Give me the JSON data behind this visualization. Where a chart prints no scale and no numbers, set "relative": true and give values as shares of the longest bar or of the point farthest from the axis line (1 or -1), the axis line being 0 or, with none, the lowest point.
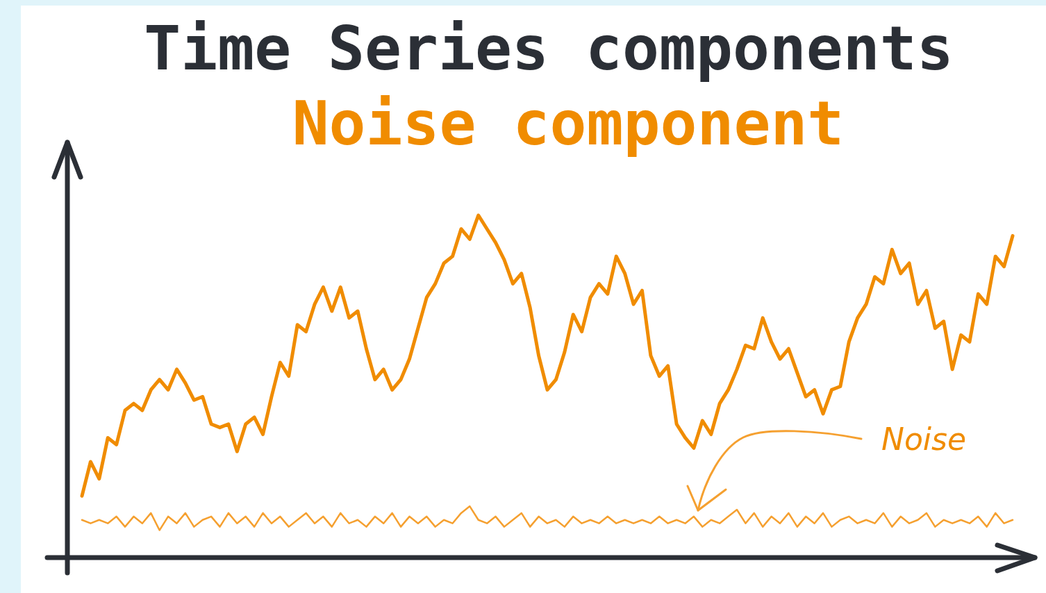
{
  "chart_data": {
    "type": "line",
    "title": "Time Series components",
    "subtitle": "Noise component",
    "relative": true,
    "marker": "none",
    "line_style": "solid",
    "categories": [
      null,
      null,
      null,
      null,
      null,
      null,
      null,
      null,
      null,
      null,
      null,
      null,
      null,
      null,
      null,
      null,
      null,
      null,
      null,
      null,
      null,
      null,
      null,
      null,
      null,
      null,
      null,
      null,
      null,
      null,
      null,
      null,
      null,
      null,
      null,
      null,
      null,
      null,
      null,
      null,
      null,
      null,
      null,
      null,
      null,
      null,
      null,
      null,
      null,
      null,
      null,
      null,
      null,
      null,
      null,
      null,
      null,
      null,
      null,
      null,
      null,
      null,
      null,
      null,
      null,
      null,
      null,
      null,
      null,
      null,
      null,
      null,
      null,
      null,
      null,
      null,
      null,
      null,
      null,
      null,
      null,
      null,
      null,
      null,
      null,
      null,
      null,
      null,
      null,
      null,
      null,
      null,
      null,
      null,
      null,
      null,
      null,
      null,
      null,
      null,
      null,
      null,
      null,
      null,
      null,
      null,
      null,
      null,
      null
    ],
    "series": [
      {
        "color": "#f08c00",
        "values": [
          0.18,
          0.28,
          0.23,
          0.35,
          0.33,
          0.43,
          0.45,
          0.43,
          0.49,
          0.52,
          0.49,
          0.55,
          0.51,
          0.46,
          0.47,
          0.39,
          0.38,
          0.39,
          0.31,
          0.39,
          0.41,
          0.36,
          0.47,
          0.57,
          0.53,
          0.68,
          0.66,
          0.74,
          0.79,
          0.72,
          0.79,
          0.7,
          0.72,
          0.61,
          0.52,
          0.55,
          0.49,
          0.52,
          0.58,
          0.67,
          0.76,
          0.8,
          0.86,
          0.88,
          0.96,
          0.93,
          1.0,
          0.96,
          0.92,
          0.87,
          0.8,
          0.83,
          0.73,
          0.59,
          0.49,
          0.52,
          0.6,
          0.71,
          0.66,
          0.76,
          0.8,
          0.77,
          0.88,
          0.83,
          0.74,
          0.78,
          0.59,
          0.53,
          0.56,
          0.39,
          0.35,
          0.32,
          0.4,
          0.36,
          0.45,
          0.49,
          0.55,
          0.62,
          0.61,
          0.7,
          0.63,
          0.58,
          0.61,
          0.54,
          0.47,
          0.49,
          0.42,
          0.49,
          0.5,
          0.63,
          0.7,
          0.74,
          0.82,
          0.8,
          0.9,
          0.83,
          0.86,
          0.74,
          0.78,
          0.67,
          0.69,
          0.55,
          0.65,
          0.63,
          0.77,
          0.74,
          0.88,
          0.85,
          0.94
        ]
      },
      {
        "color": "#f5a030",
        "values": [
          0.11,
          0.1,
          0.11,
          0.1,
          0.12,
          0.09,
          0.12,
          0.1,
          0.13,
          0.08,
          0.12,
          0.1,
          0.13,
          0.09,
          0.11,
          0.12,
          0.09,
          0.13,
          0.1,
          0.12,
          0.09,
          0.13,
          0.1,
          0.12,
          0.09,
          0.11,
          0.13,
          0.1,
          0.12,
          0.09,
          0.13,
          0.1,
          0.11,
          0.09,
          0.12,
          0.1,
          0.13,
          0.09,
          0.12,
          0.1,
          0.12,
          0.09,
          0.11,
          0.1,
          0.13,
          0.15,
          0.11,
          0.1,
          0.12,
          0.09,
          0.11,
          0.13,
          0.09,
          0.12,
          0.1,
          0.11,
          0.09,
          0.12,
          0.1,
          0.11,
          0.1,
          0.12,
          0.1,
          0.11,
          0.1,
          0.11,
          0.1,
          0.12,
          0.1,
          0.11,
          0.1,
          0.12,
          0.09,
          0.11,
          0.1,
          0.12,
          0.14,
          0.1,
          0.13,
          0.09,
          0.12,
          0.1,
          0.13,
          0.09,
          0.12,
          0.1,
          0.13,
          0.09,
          0.11,
          0.12,
          0.1,
          0.11,
          0.1,
          0.13,
          0.09,
          0.12,
          0.1,
          0.11,
          0.13,
          0.09,
          0.11,
          0.1,
          0.11,
          0.1,
          0.12,
          0.09,
          0.13,
          0.1,
          0.11
        ]
      }
    ],
    "annotations": [
      "Noise"
    ]
  }
}
